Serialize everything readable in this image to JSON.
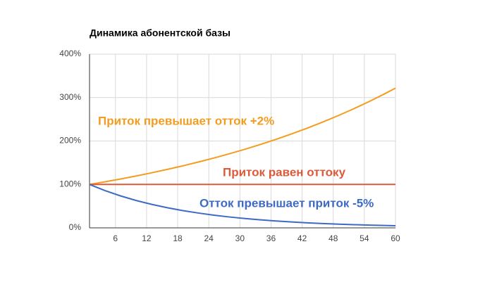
{
  "chart_data": {
    "type": "line",
    "title": "Динамика абонентской базы",
    "x": [
      1,
      4,
      7,
      10,
      13,
      16,
      19,
      22,
      25,
      28,
      31,
      34,
      37,
      40,
      43,
      46,
      49,
      52,
      55,
      58,
      60
    ],
    "xlim": [
      1,
      60
    ],
    "xticks": [
      6,
      12,
      18,
      24,
      30,
      36,
      42,
      48,
      54,
      60
    ],
    "ylim": [
      0,
      400
    ],
    "yticks": [
      {
        "value": 0,
        "label": "0%"
      },
      {
        "value": 100,
        "label": "100%"
      },
      {
        "value": 200,
        "label": "200%"
      },
      {
        "value": 300,
        "label": "300%"
      },
      {
        "value": 400,
        "label": "400%"
      }
    ],
    "grid": true,
    "series": [
      {
        "name": "Приток превышает отток +2%",
        "color": "#f39c1f",
        "values": [
          100,
          106.1,
          112.6,
          119.5,
          126.8,
          134.6,
          142.8,
          151.6,
          160.8,
          170.7,
          181.1,
          192.2,
          204.0,
          216.5,
          229.7,
          243.8,
          258.7,
          274.5,
          291.3,
          309.2,
          321.7
        ]
      },
      {
        "name": "Приток равен оттоку",
        "color": "#dc5a3a",
        "values": [
          100,
          100,
          100,
          100,
          100,
          100,
          100,
          100,
          100,
          100,
          100,
          100,
          100,
          100,
          100,
          100,
          100,
          100,
          100,
          100,
          100
        ]
      },
      {
        "name": "Отток превышает приток -5%",
        "color": "#3d6ac4",
        "values": [
          100,
          85.7,
          73.5,
          63.0,
          54.0,
          46.3,
          39.7,
          34.1,
          29.2,
          25.0,
          21.5,
          18.4,
          15.8,
          13.5,
          11.6,
          9.9,
          8.5,
          7.3,
          6.3,
          5.4,
          4.8
        ]
      }
    ]
  }
}
